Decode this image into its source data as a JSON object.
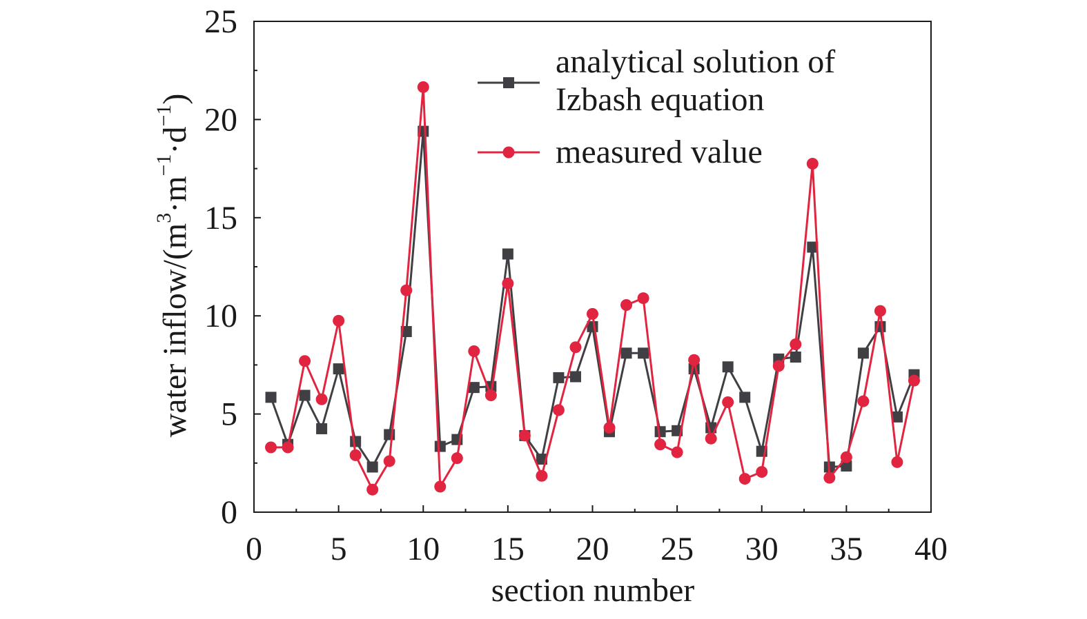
{
  "chart_data": {
    "type": "line",
    "xlabel": "section number",
    "ylabel_main": "water inflow/(m",
    "ylabel_sup1": "3",
    "ylabel_mid1": "·m",
    "ylabel_sup2": "−1",
    "ylabel_mid2": "·d",
    "ylabel_sup3": "−1",
    "ylabel_end": ")",
    "xlim": [
      0,
      40
    ],
    "ylim": [
      0,
      25
    ],
    "xticks": [
      0,
      5,
      10,
      15,
      20,
      25,
      30,
      35,
      40
    ],
    "yticks": [
      0,
      5,
      10,
      15,
      20,
      25
    ],
    "legend_position": "top-right",
    "x": [
      1,
      2,
      3,
      4,
      5,
      6,
      7,
      8,
      9,
      10,
      11,
      12,
      13,
      14,
      15,
      16,
      17,
      18,
      19,
      20,
      21,
      22,
      23,
      24,
      25,
      26,
      27,
      28,
      29,
      30,
      31,
      32,
      33,
      34,
      35,
      36,
      37,
      38,
      39
    ],
    "series": [
      {
        "name_line1": "analytical solution of",
        "name_line2": "Izbash equation",
        "color": "#3f3f44",
        "marker": "square",
        "values": [
          5.85,
          3.45,
          5.95,
          4.25,
          7.3,
          3.6,
          2.3,
          3.95,
          9.2,
          19.4,
          3.35,
          3.7,
          6.35,
          6.4,
          13.15,
          3.9,
          2.7,
          6.85,
          6.9,
          9.45,
          4.1,
          8.1,
          8.1,
          4.1,
          4.15,
          7.3,
          4.3,
          7.4,
          5.85,
          3.1,
          7.8,
          7.9,
          13.5,
          2.3,
          2.35,
          8.1,
          9.45,
          4.85,
          7.0
        ]
      },
      {
        "name": "measured value",
        "color": "#e1243f",
        "marker": "circle",
        "values": [
          3.3,
          3.3,
          7.7,
          5.75,
          9.75,
          2.9,
          1.15,
          2.6,
          11.3,
          21.65,
          1.3,
          2.75,
          8.2,
          5.95,
          11.65,
          3.9,
          1.85,
          5.2,
          8.4,
          10.1,
          4.3,
          10.55,
          10.9,
          3.45,
          3.05,
          7.75,
          3.75,
          5.6,
          1.7,
          2.05,
          7.45,
          8.55,
          17.75,
          1.75,
          2.8,
          5.65,
          10.25,
          2.55,
          6.7
        ]
      }
    ]
  }
}
